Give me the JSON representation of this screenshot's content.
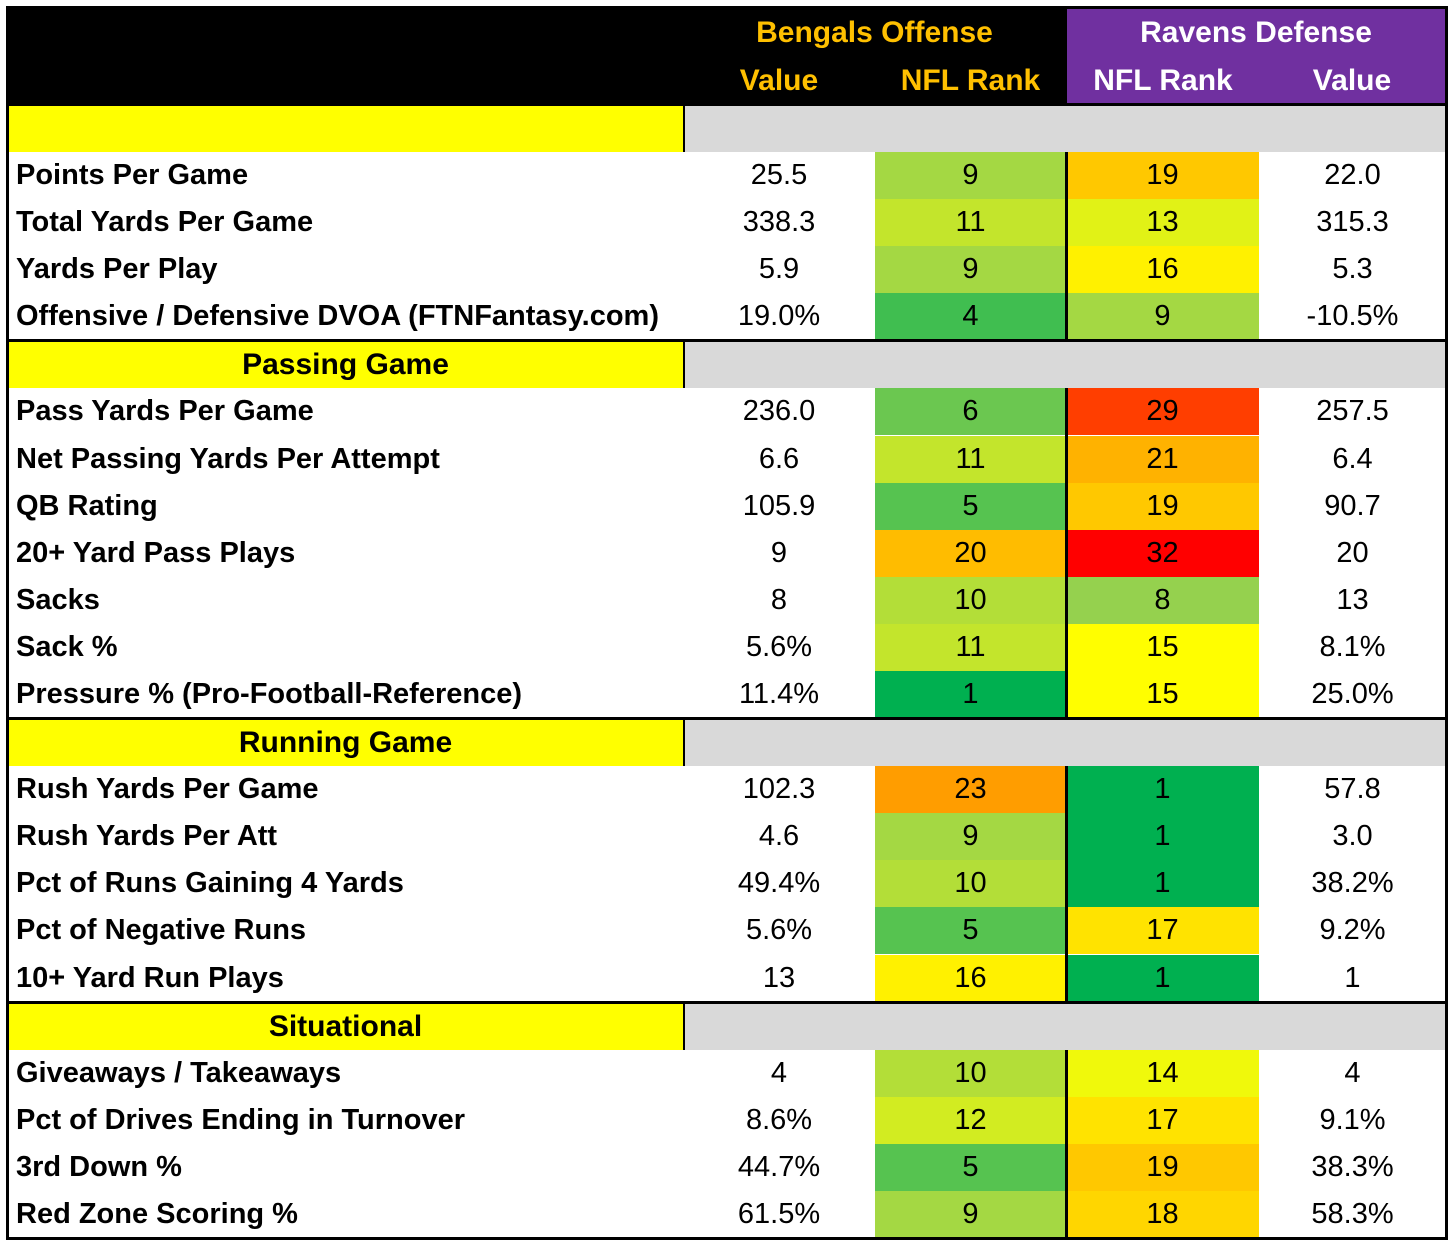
{
  "colors": {
    "header_bg": "#000000",
    "ravens_bg": "#7030a0",
    "bengals_text": "#ffc000",
    "section_label_bg": "#ffff00",
    "section_gray_bg": "#d9d9d9"
  },
  "header": {
    "bengals_title": "Bengals Offense",
    "ravens_title": "Ravens Defense",
    "bengals_value_label": "Value",
    "bengals_rank_label": "NFL Rank",
    "ravens_rank_label": "NFL Rank",
    "ravens_value_label": "Value"
  },
  "sections": [
    {
      "title": "",
      "rows": [
        {
          "label": "Points Per Game",
          "bengals_value": "25.5",
          "bengals_rank": 9,
          "ravens_rank": 19,
          "ravens_value": "22.0"
        },
        {
          "label": "Total Yards Per Game",
          "bengals_value": "338.3",
          "bengals_rank": 11,
          "ravens_rank": 13,
          "ravens_value": "315.3"
        },
        {
          "label": "Yards Per Play",
          "bengals_value": "5.9",
          "bengals_rank": 9,
          "ravens_rank": 16,
          "ravens_value": "5.3"
        },
        {
          "label": "Offensive / Defensive DVOA (FTNFantasy.com)",
          "bengals_value": "19.0%",
          "bengals_rank": 4,
          "ravens_rank": 9,
          "ravens_value": "-10.5%"
        }
      ]
    },
    {
      "title": "Passing Game",
      "rows": [
        {
          "label": "Pass Yards Per Game",
          "bengals_value": "236.0",
          "bengals_rank": 6,
          "ravens_rank": 29,
          "ravens_value": "257.5"
        },
        {
          "label": "Net Passing Yards Per Attempt",
          "bengals_value": "6.6",
          "bengals_rank": 11,
          "ravens_rank": 21,
          "ravens_value": "6.4"
        },
        {
          "label": "QB Rating",
          "bengals_value": "105.9",
          "bengals_rank": 5,
          "ravens_rank": 19,
          "ravens_value": "90.7"
        },
        {
          "label": "20+ Yard Pass Plays",
          "bengals_value": "9",
          "bengals_rank": 20,
          "ravens_rank": 32,
          "ravens_value": "20"
        },
        {
          "label": "Sacks",
          "bengals_value": "8",
          "bengals_rank": 10,
          "ravens_rank": 8,
          "ravens_value": "13"
        },
        {
          "label": "Sack %",
          "bengals_value": "5.6%",
          "bengals_rank": 11,
          "ravens_rank": 15,
          "ravens_value": "8.1%"
        },
        {
          "label": "Pressure % (Pro-Football-Reference)",
          "bengals_value": "11.4%",
          "bengals_rank": 1,
          "ravens_rank": 15,
          "ravens_value": "25.0%"
        }
      ]
    },
    {
      "title": "Running Game",
      "rows": [
        {
          "label": "Rush Yards Per Game",
          "bengals_value": "102.3",
          "bengals_rank": 23,
          "ravens_rank": 1,
          "ravens_value": "57.8"
        },
        {
          "label": "Rush Yards Per Att",
          "bengals_value": "4.6",
          "bengals_rank": 9,
          "ravens_rank": 1,
          "ravens_value": "3.0"
        },
        {
          "label": "Pct of Runs Gaining 4 Yards",
          "bengals_value": "49.4%",
          "bengals_rank": 10,
          "ravens_rank": 1,
          "ravens_value": "38.2%"
        },
        {
          "label": "Pct of Negative Runs",
          "bengals_value": "5.6%",
          "bengals_rank": 5,
          "ravens_rank": 17,
          "ravens_value": "9.2%"
        },
        {
          "label": "10+ Yard Run Plays",
          "bengals_value": "13",
          "bengals_rank": 16,
          "ravens_rank": 1,
          "ravens_value": "1"
        }
      ]
    },
    {
      "title": "Situational",
      "rows": [
        {
          "label": "Giveaways / Takeaways",
          "bengals_value": "4",
          "bengals_rank": 10,
          "ravens_rank": 14,
          "ravens_value": "4"
        },
        {
          "label": "Pct of Drives Ending in Turnover",
          "bengals_value": "8.6%",
          "bengals_rank": 12,
          "ravens_rank": 17,
          "ravens_value": "9.1%"
        },
        {
          "label": "3rd Down %",
          "bengals_value": "44.7%",
          "bengals_rank": 5,
          "ravens_rank": 19,
          "ravens_value": "38.3%"
        },
        {
          "label": "Red Zone Scoring %",
          "bengals_value": "61.5%",
          "bengals_rank": 9,
          "ravens_rank": 18,
          "ravens_value": "58.3%"
        }
      ]
    }
  ]
}
